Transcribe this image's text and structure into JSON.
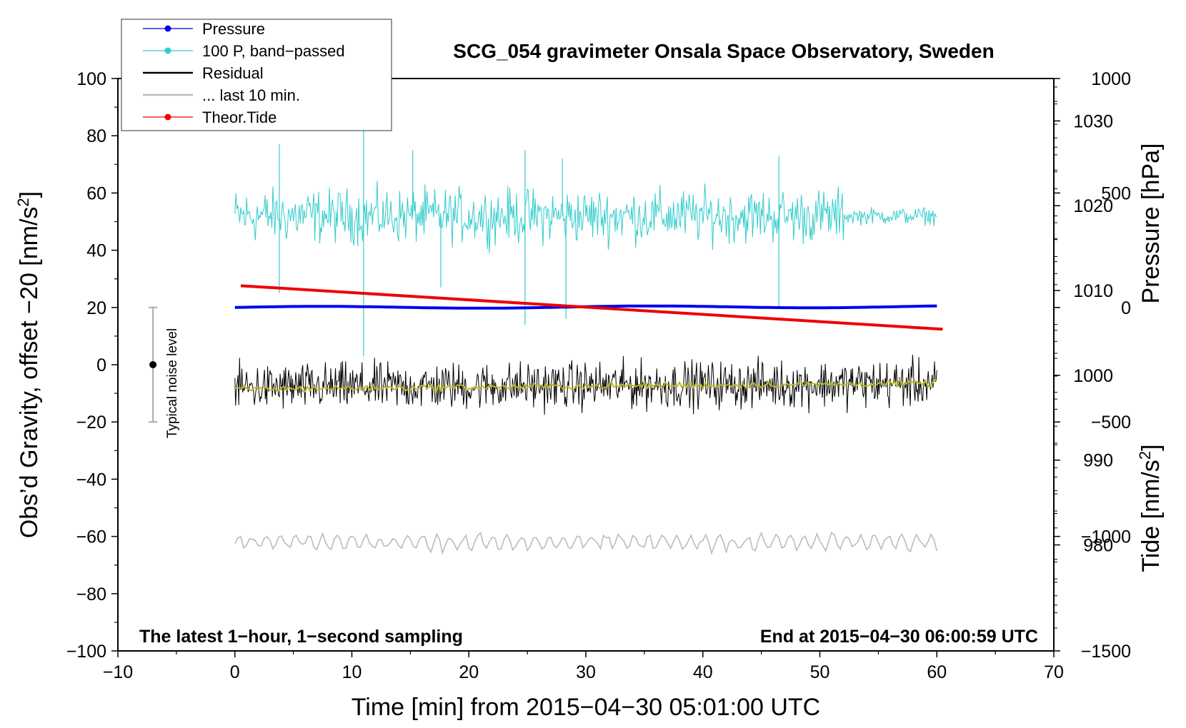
{
  "chart_data": {
    "type": "line",
    "title": "SCG_054 gravimeter Onsala Space Observatory, Sweden",
    "xlabel": "Time [min] from 2015−04−30 05:01:00 UTC",
    "ylabel_prefix": "Obs’d Gravity, offset −20 [nm/s",
    "ylabel_sup": "2",
    "ylabel_suffix": "]",
    "y2label_pressure": "Pressure [hPa]",
    "y2label_tide_prefix": "Tide [nm/s",
    "y2label_tide_sup": "2",
    "y2label_tide_suffix": "]",
    "xlim": [
      -10,
      70
    ],
    "ylim": [
      -100,
      100
    ],
    "pressure_axis_lim": [
      967.5,
      1035
    ],
    "tide_axis_lim": [
      -1500,
      1000
    ],
    "x_ticks": [
      "−10",
      "0",
      "10",
      "20",
      "30",
      "40",
      "50",
      "60",
      "70"
    ],
    "y_ticks": [
      "−100",
      "−80",
      "−60",
      "−40",
      "−20",
      "0",
      "20",
      "40",
      "60",
      "80",
      "100"
    ],
    "pressure_ticks": [
      "980",
      "990",
      "1000",
      "1010",
      "1020",
      "1030"
    ],
    "tide_ticks": [
      "−1500",
      "−1000",
      "−500",
      "0",
      "500",
      "1000"
    ],
    "note_left": "The latest 1−hour, 1−second sampling",
    "note_right": "End at 2015−04−30 06:00:59 UTC",
    "noise_label": "Typical noise level",
    "noise_bar": {
      "x": -7,
      "center": 0,
      "low": -20,
      "high": 20
    },
    "legend": [
      {
        "label": "Pressure",
        "color": "#0000ee",
        "marker": true
      },
      {
        "label": "100 P, band−passed",
        "color": "#33cccc",
        "marker": true
      },
      {
        "label": "Residual",
        "color": "#000000",
        "marker": false
      },
      {
        "label": "... last 10 min.",
        "color": "#bbbbbb",
        "marker": false
      },
      {
        "label": "Theor.Tide",
        "color": "#ee0000",
        "marker": true
      }
    ],
    "series": [
      {
        "name": "Pressure",
        "color": "#0000ee",
        "axis": "pressure",
        "x_range": [
          0,
          60
        ],
        "level_start": 1008.0,
        "level_end": 1008.1
      },
      {
        "name": "100 P, band−passed",
        "color": "#33cccc",
        "axis": "gravity",
        "x_range": [
          0,
          60
        ],
        "mean": 52,
        "spikes_up": [
          [
            3.8,
            77
          ],
          [
            11,
            85
          ],
          [
            15.2,
            75
          ],
          [
            24.8,
            75
          ],
          [
            28,
            72
          ],
          [
            46.5,
            73
          ]
        ],
        "spikes_down": [
          [
            3.8,
            25
          ],
          [
            11,
            3
          ],
          [
            17.6,
            27
          ],
          [
            24.8,
            14
          ],
          [
            28.3,
            16
          ],
          [
            46.5,
            20
          ]
        ]
      },
      {
        "name": "Residual",
        "color": "#000000",
        "axis": "gravity",
        "x_range": [
          0,
          60
        ],
        "level_start": -8,
        "level_end": -6.5,
        "noise": 7
      },
      {
        "name": "Residual smoothed",
        "color": "#bbbb22",
        "axis": "gravity",
        "x_range": [
          0,
          60
        ],
        "level_start": -8.5,
        "level_end": -6.5
      },
      {
        "name": "... last 10 min.",
        "color": "#bbbbbb",
        "axis": "gravity",
        "x_range": [
          0,
          60
        ],
        "level": -62,
        "amplitude": 3
      },
      {
        "name": "Theor.Tide",
        "color": "#ee0000",
        "axis": "tide",
        "x_range": [
          0.5,
          60.5
        ],
        "y_start": 95,
        "y_end": -95
      }
    ]
  }
}
